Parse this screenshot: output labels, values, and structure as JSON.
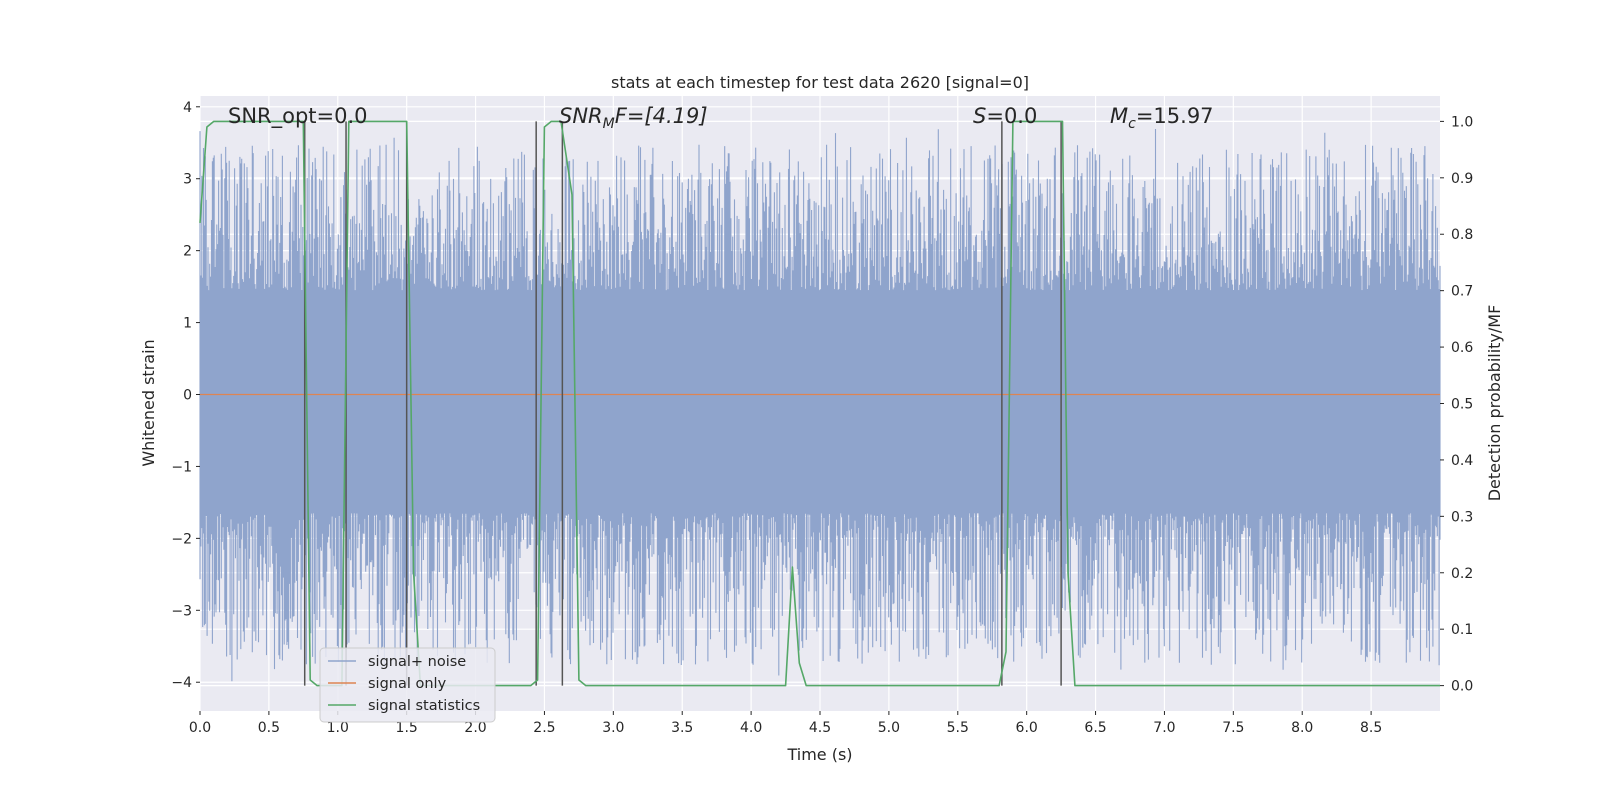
{
  "chart_data": {
    "type": "line",
    "title": "stats at each timestep for test data 2620 [signal=0]",
    "xlabel": "Time (s)",
    "ylabel": "Whitened strain",
    "y2label": "Detection probability/MF",
    "xlim": [
      0,
      9
    ],
    "ylim": [
      -4.4,
      4.15
    ],
    "y2lim": [
      -0.045,
      1.045
    ],
    "x_ticks": [
      0.0,
      0.5,
      1.0,
      1.5,
      2.0,
      2.5,
      3.0,
      3.5,
      4.0,
      4.5,
      5.0,
      5.5,
      6.0,
      6.5,
      7.0,
      7.5,
      8.0,
      8.5
    ],
    "x_tick_labels": [
      "0.0",
      "0.5",
      "1.0",
      "1.5",
      "2.0",
      "2.5",
      "3.0",
      "3.5",
      "4.0",
      "4.5",
      "5.0",
      "5.5",
      "6.0",
      "6.5",
      "7.0",
      "7.5",
      "8.0",
      "8.5"
    ],
    "y_ticks": [
      4,
      3,
      2,
      1,
      0,
      -1,
      -2,
      -3,
      -4
    ],
    "y_tick_labels": [
      "4",
      "3",
      "2",
      "1",
      "0",
      "−1",
      "−2",
      "−3",
      "−4"
    ],
    "y2_ticks": [
      1.0,
      0.9,
      0.8,
      0.7,
      0.6,
      0.5,
      0.4,
      0.3,
      0.2,
      0.1,
      0.0
    ],
    "y2_tick_labels": [
      "1.0",
      "0.9",
      "0.8",
      "0.7",
      "0.6",
      "0.5",
      "0.4",
      "0.3",
      "0.2",
      "0.1",
      "0.0"
    ],
    "grid": true,
    "legend_position": "lower-left",
    "annotations": {
      "snr_opt": "SNR_opt=0.0",
      "snr_mf_sym": "SNR",
      "snr_mf_sub": "M",
      "snr_mf_rest": "F=[4.19]",
      "s_sym": "S",
      "s_rest": "=0.0",
      "mc_sym": "M",
      "mc_sub": "c",
      "mc_rest": "=15.97"
    },
    "series": [
      {
        "name": "signal+ noise",
        "color": "#8fa4cc",
        "kind": "noise",
        "core_band": [
          -1.65,
          1.45
        ],
        "approx_peak_range": [
          -4.0,
          3.7
        ]
      },
      {
        "name": "signal only",
        "color": "#dd8452",
        "x": [
          0,
          9
        ],
        "y": [
          0,
          0
        ]
      },
      {
        "name": "signal statistics",
        "color": "#55a868",
        "axis": "right",
        "x": [
          0.0,
          0.05,
          0.1,
          0.7,
          0.75,
          0.8,
          0.85,
          1.03,
          1.08,
          1.12,
          1.5,
          1.55,
          1.6,
          1.65,
          2.4,
          2.45,
          2.5,
          2.55,
          2.62,
          2.7,
          2.75,
          2.8,
          4.25,
          4.3,
          4.35,
          4.4,
          5.8,
          5.85,
          5.9,
          6.22,
          6.26,
          6.3,
          6.35,
          6.4,
          9.0
        ],
        "y": [
          0.82,
          0.99,
          1.0,
          1.0,
          1.0,
          0.01,
          0.0,
          0.0,
          1.0,
          1.0,
          1.0,
          0.2,
          0.0,
          0.0,
          0.0,
          0.01,
          0.99,
          1.0,
          1.0,
          0.87,
          0.01,
          0.0,
          0.0,
          0.21,
          0.04,
          0.0,
          0.0,
          0.06,
          1.0,
          1.0,
          1.0,
          0.2,
          0.0,
          0.0,
          0.0
        ]
      }
    ],
    "vertical_markers_x": [
      0.76,
      1.06,
      1.5,
      2.44,
      2.63,
      5.82,
      6.25
    ],
    "vertical_marker_color": "#555555"
  },
  "legend": {
    "items": [
      "signal+ noise",
      "signal only",
      "signal statistics"
    ]
  }
}
